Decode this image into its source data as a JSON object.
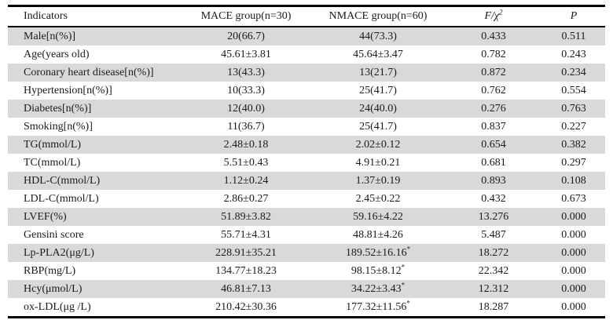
{
  "table": {
    "row_shading_color": "#d9d9d9",
    "text_color": "#1b1b1b",
    "columns": [
      {
        "key": "indicators",
        "label": "Indicators"
      },
      {
        "key": "mace-group",
        "label": "MACE group(n=30)"
      },
      {
        "key": "nmace-group",
        "label": "NMACE group(n=60)"
      },
      {
        "key": "f-chi2",
        "label": "F/χ",
        "sup": "2",
        "italic": true
      },
      {
        "key": "p",
        "label": "P",
        "italic": true
      }
    ],
    "rows": [
      {
        "indicator": "Male[n(%)]",
        "mace": "20(66.7)",
        "nmace": "44(73.3)",
        "f": "0.433",
        "p": "0.511"
      },
      {
        "indicator": "Age(years old)",
        "mace": "45.61±3.81",
        "nmace": "45.64±3.47",
        "f": "0.782",
        "p": "0.243"
      },
      {
        "indicator": "Coronary heart disease[n(%)]",
        "mace": "13(43.3)",
        "nmace": "13(21.7)",
        "f": "0.872",
        "p": "0.234"
      },
      {
        "indicator": "Hypertension[n(%)]",
        "mace": "10(33.3)",
        "nmace": "25(41.7)",
        "f": "0.762",
        "p": "0.554"
      },
      {
        "indicator": "Diabetes[n(%)]",
        "mace": "12(40.0)",
        "nmace": "24(40.0)",
        "f": "0.276",
        "p": "0.763"
      },
      {
        "indicator": "Smoking[n(%)]",
        "mace": "11(36.7)",
        "nmace": "25(41.7)",
        "f": "0.837",
        "p": "0.227"
      },
      {
        "indicator": "TG(mmol/L)",
        "mace": "2.48±0.18",
        "nmace": "2.02±0.12",
        "f": "0.654",
        "p": "0.382"
      },
      {
        "indicator": "TC(mmol/L)",
        "mace": "5.51±0.43",
        "nmace": "4.91±0.21",
        "f": "0.681",
        "p": "0.297"
      },
      {
        "indicator": "HDL-C(mmol/L)",
        "mace": "1.12±0.24",
        "nmace": "1.37±0.19",
        "f": "0.893",
        "p": "0.108"
      },
      {
        "indicator": "LDL-C(mmol/L)",
        "mace": "2.86±0.27",
        "nmace": "2.45±0.22",
        "f": "0.432",
        "p": "0.673"
      },
      {
        "indicator": "LVEF(%)",
        "mace": "51.89±3.82",
        "nmace": "59.16±4.22",
        "f": "13.276",
        "p": "0.000"
      },
      {
        "indicator": "Gensini score",
        "mace": "55.71±4.31",
        "nmace": "48.81±4.26",
        "f": "5.487",
        "p": "0.000"
      },
      {
        "indicator": "Lp-PLA2(μg/L)",
        "mace": "228.91±35.21",
        "nmace": "189.52±16.16",
        "nmace_sup": "*",
        "f": "18.272",
        "p": "0.000"
      },
      {
        "indicator": "RBP(mg/L)",
        "mace": "134.77±18.23",
        "nmace": "98.15±8.12",
        "nmace_sup": "*",
        "f": "22.342",
        "p": "0.000"
      },
      {
        "indicator": "Hcy(μmol/L)",
        "mace": "46.81±7.13",
        "nmace": "34.22±3.43",
        "nmace_sup": "*",
        "f": "12.312",
        "p": "0.000"
      },
      {
        "indicator": "ox-LDL(μg /L)",
        "mace": "210.42±30.36",
        "nmace": "177.32±11.56",
        "nmace_sup": "*",
        "f": "18.287",
        "p": "0.000"
      }
    ]
  }
}
